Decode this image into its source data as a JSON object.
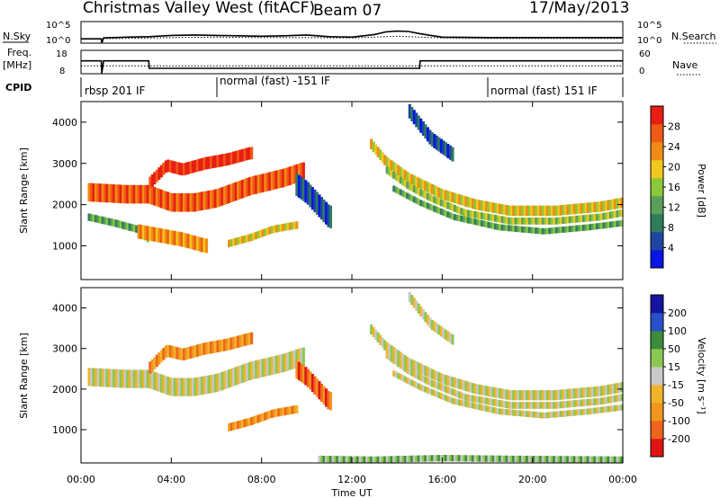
{
  "header": {
    "station": "Christmas Valley West (fitACF)",
    "beam": "Beam 07",
    "date": "17/May/2013"
  },
  "chart_data": [
    {
      "type": "line",
      "panel": "noise",
      "ylabel_left": "N.Sky",
      "ylabel_right": "N.Search",
      "left_ticks": [
        "10^5",
        "10^0"
      ],
      "right_ticks": [
        "10^5",
        "10^0"
      ],
      "ylim": [
        0,
        5
      ],
      "yscale": "log",
      "series": [
        {
          "style": "solid",
          "x": [
            0,
            0.9,
            0.92,
            1.0,
            2.0,
            3.0,
            4.0,
            5.0,
            6.0,
            7.0,
            8.0,
            9.0,
            10.0,
            11.0,
            12.0,
            13.0,
            13.5,
            14.0,
            14.5,
            15.0,
            15.5,
            16.0,
            18.0,
            20.0,
            22.0,
            24.0
          ],
          "values": [
            1.0,
            1.0,
            0.0,
            1.2,
            1.4,
            1.5,
            1.8,
            1.9,
            1.8,
            1.7,
            1.6,
            1.7,
            1.9,
            1.5,
            1.4,
            2.0,
            2.6,
            2.8,
            2.7,
            2.2,
            1.8,
            1.4,
            1.3,
            1.3,
            1.3,
            1.3
          ]
        },
        {
          "style": "dotted",
          "x": [
            0,
            2,
            4,
            6,
            8,
            10,
            12,
            14,
            16,
            18,
            20,
            22,
            24
          ],
          "values": [
            1.0,
            1.1,
            1.3,
            1.4,
            1.3,
            1.3,
            1.2,
            1.6,
            1.2,
            1.1,
            1.1,
            1.1,
            1.1
          ]
        }
      ]
    },
    {
      "type": "line",
      "panel": "frequency",
      "ylabel_left": [
        "Freq.",
        "[MHz]"
      ],
      "ylabel_right": "Nave",
      "left_ticks": [
        "18",
        "8"
      ],
      "right_ticks": [
        "60",
        "0"
      ],
      "ylim": [
        8,
        18
      ],
      "series": [
        {
          "style": "solid",
          "x": [
            0,
            0.9,
            0.92,
            1.0,
            3.0,
            3.02,
            15.0,
            15.02,
            24.0
          ],
          "values": [
            13.5,
            13.5,
            8.2,
            13.5,
            13.5,
            10.3,
            10.3,
            13.5,
            13.5
          ]
        },
        {
          "style": "dotted",
          "x": [
            0,
            24
          ],
          "values": [
            11.4,
            11.4
          ]
        }
      ]
    },
    {
      "type": "table",
      "panel": "cpid",
      "label": "CPID",
      "entries": [
        {
          "start": 0,
          "end": 6,
          "text": "rbsp 201 IF"
        },
        {
          "start": 6,
          "end": 18,
          "text": "normal (fast) -151 IF"
        },
        {
          "start": 18,
          "end": 24,
          "text": "normal (fast) 151 IF"
        }
      ]
    },
    {
      "type": "heatmap",
      "panel": "power",
      "ylabel": "Slant Range [km]",
      "yticks": [
        "4000",
        "3000",
        "2000",
        "1000"
      ],
      "ylim": [
        180,
        4500
      ],
      "xlim": [
        0,
        24
      ],
      "colorbar_label": "Power [dB]",
      "colorbar_ticks": [
        "28",
        "24",
        "20",
        "16",
        "12",
        "8",
        "4"
      ],
      "colors": [
        "#0a14e6",
        "#1e46a0",
        "#2e7d5b",
        "#5aa05a",
        "#8cc83c",
        "#f0c81e",
        "#f08c14",
        "#f05a14",
        "#e81e14"
      ],
      "bands": [
        {
          "x": [
            0.3,
            2.0,
            3.0,
            4.0,
            5.0,
            6.0,
            7.5,
            9.0,
            9.8
          ],
          "y": [
            2300,
            2250,
            2250,
            2050,
            2050,
            2150,
            2450,
            2650,
            2800
          ],
          "width": 450,
          "level": 7
        },
        {
          "x": [
            0.3,
            1.5,
            2.5,
            3.0
          ],
          "y": [
            1700,
            1550,
            1400,
            1150
          ],
          "width": 180,
          "level": 3
        },
        {
          "x": [
            2.5,
            3.5,
            4.5,
            5.5
          ],
          "y": [
            1350,
            1250,
            1150,
            1000
          ],
          "width": 350,
          "level": 6
        },
        {
          "x": [
            3.0,
            3.8,
            4.5,
            5.5,
            6.5,
            7.5
          ],
          "y": [
            2500,
            2950,
            2850,
            3000,
            3100,
            3250
          ],
          "width": 300,
          "level": 8
        },
        {
          "x": [
            6.5,
            7.5,
            8.5,
            9.5
          ],
          "y": [
            1050,
            1200,
            1400,
            1500
          ],
          "width": 180,
          "level": 5
        },
        {
          "x": [
            9.5,
            10.0,
            10.5,
            11.0
          ],
          "y": [
            2500,
            2300,
            2000,
            1700
          ],
          "width": 550,
          "level": 1
        },
        {
          "x": [
            12.8,
            13.5,
            14.5,
            16.0,
            17.5,
            19.0,
            21.0,
            23.0,
            24.0
          ],
          "y": [
            3500,
            3050,
            2650,
            2250,
            2000,
            1850,
            1850,
            1950,
            2050
          ],
          "width": 250,
          "level": 5
        },
        {
          "x": [
            13.5,
            14.5,
            15.5,
            17.0,
            19.0,
            21.0,
            23.0,
            24.0
          ],
          "y": [
            2850,
            2450,
            2150,
            1800,
            1600,
            1600,
            1700,
            1800
          ],
          "width": 170,
          "level": 4
        },
        {
          "x": [
            13.8,
            15.0,
            16.5,
            18.5,
            20.5,
            22.5,
            24.0
          ],
          "y": [
            2400,
            2050,
            1700,
            1450,
            1350,
            1450,
            1550
          ],
          "width": 150,
          "level": 3
        },
        {
          "x": [
            14.5,
            15.5,
            16.5
          ],
          "y": [
            4300,
            3600,
            3200
          ],
          "width": 350,
          "level": 1
        }
      ]
    },
    {
      "type": "heatmap",
      "panel": "velocity",
      "ylabel": "Slant Range [km]",
      "yticks": [
        "4000",
        "3000",
        "2000",
        "1000"
      ],
      "ylim": [
        180,
        4500
      ],
      "xlim": [
        0,
        24
      ],
      "xticks": [
        "00:00",
        "04:00",
        "08:00",
        "12:00",
        "16:00",
        "20:00",
        "00:00"
      ],
      "xlabel": "Time UT",
      "colorbar_label": "Velocity [m s⁻¹]",
      "colorbar_ticks": [
        "200",
        "100",
        "50",
        "15",
        "-15",
        "-50",
        "-100",
        "-200"
      ],
      "colors": [
        "#e01414",
        "#f0641e",
        "#f0961e",
        "#f0b428",
        "#c8c8c8",
        "#8cc850",
        "#3c8c3c",
        "#2850c8",
        "#1414a0"
      ],
      "bands": [
        {
          "x": [
            0.3,
            2.0,
            3.0,
            4.0,
            5.0,
            6.0,
            7.5,
            9.0,
            9.8
          ],
          "y": [
            2300,
            2250,
            2250,
            2050,
            2050,
            2150,
            2450,
            2650,
            2800
          ],
          "width": 450,
          "level": 4
        },
        {
          "x": [
            3.0,
            3.8,
            4.5,
            5.5,
            6.5,
            7.5
          ],
          "y": [
            2500,
            2950,
            2850,
            3000,
            3100,
            3250
          ],
          "width": 300,
          "level": 2
        },
        {
          "x": [
            6.5,
            7.5,
            8.5,
            9.5
          ],
          "y": [
            1050,
            1200,
            1400,
            1500
          ],
          "width": 200,
          "level": 2
        },
        {
          "x": [
            9.5,
            10.0,
            10.5,
            11.0
          ],
          "y": [
            2500,
            2300,
            2000,
            1700
          ],
          "width": 450,
          "level": 1
        },
        {
          "x": [
            12.8,
            13.5,
            14.5,
            16.0,
            17.5,
            19.0,
            21.0,
            23.0,
            24.0
          ],
          "y": [
            3500,
            3050,
            2650,
            2250,
            2000,
            1850,
            1850,
            1950,
            2050
          ],
          "width": 250,
          "level": 4
        },
        {
          "x": [
            13.5,
            14.5,
            15.5,
            17.0,
            19.0,
            21.0,
            23.0,
            24.0
          ],
          "y": [
            2850,
            2450,
            2150,
            1800,
            1600,
            1600,
            1700,
            1800
          ],
          "width": 170,
          "level": 4
        },
        {
          "x": [
            13.8,
            15.0,
            16.5,
            18.5,
            20.5,
            22.5,
            24.0
          ],
          "y": [
            2400,
            2050,
            1700,
            1450,
            1350,
            1450,
            1550
          ],
          "width": 150,
          "level": 4
        },
        {
          "x": [
            14.5,
            15.5,
            16.5
          ],
          "y": [
            4300,
            3600,
            3200
          ],
          "width": 250,
          "level": 4
        },
        {
          "x": [
            10.5,
            13.0,
            16.0,
            19.0,
            22.0,
            24.0
          ],
          "y": [
            280,
            260,
            300,
            280,
            270,
            260
          ],
          "width": 160,
          "level": 5
        }
      ]
    }
  ]
}
